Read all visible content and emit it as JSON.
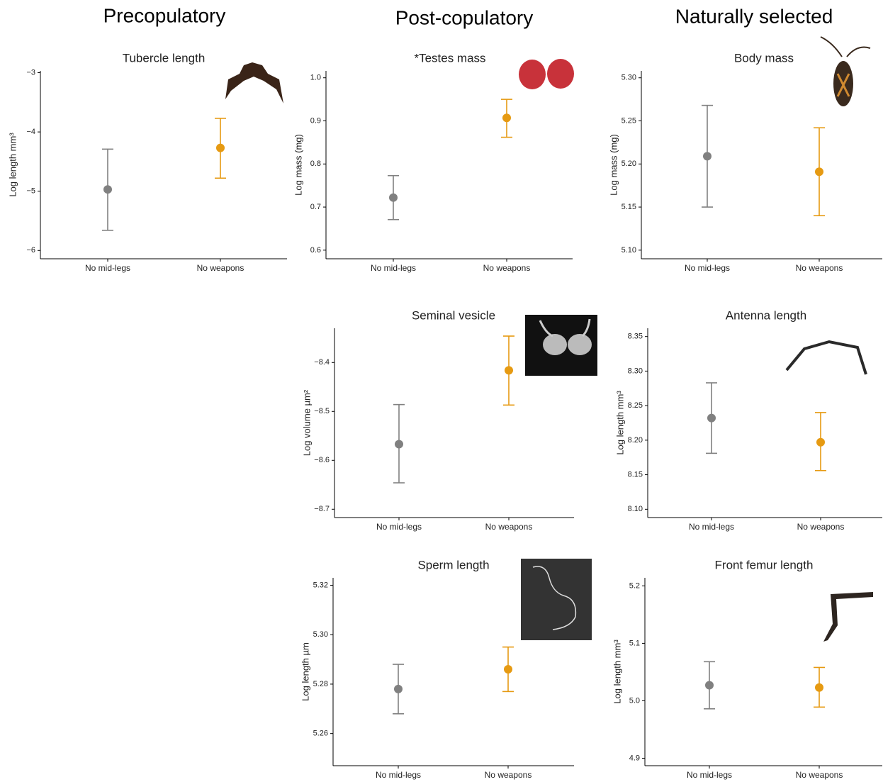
{
  "column_headers": [
    "Precopulatory",
    "Post-copulatory",
    "Naturally selected"
  ],
  "chart_data": [
    {
      "type": "pointrange",
      "title": "Tubercle length",
      "ylabel": "Log length mm³",
      "categories": [
        "No mid-legs",
        "No weapons"
      ],
      "values": [
        -4.97,
        -4.27
      ],
      "lower": [
        -5.66,
        -4.78
      ],
      "upper": [
        -4.29,
        -3.77
      ],
      "colors": [
        "#808080",
        "#e69a12"
      ],
      "ylim": [
        -6.14,
        -2.97
      ],
      "yticks": [
        {
          "value": -3,
          "label": "−3"
        },
        {
          "value": -4,
          "label": "−4"
        },
        {
          "value": -5,
          "label": "−5"
        },
        {
          "value": -6,
          "label": "−6"
        }
      ]
    },
    {
      "type": "pointrange",
      "title": "*Testes mass",
      "ylabel": "Log mass (mg)",
      "categories": [
        "No mid-legs",
        "No weapons"
      ],
      "values": [
        0.722,
        0.907
      ],
      "lower": [
        0.671,
        0.862
      ],
      "upper": [
        0.773,
        0.95
      ],
      "colors": [
        "#808080",
        "#e69a12"
      ],
      "ylim": [
        0.58,
        1.016
      ],
      "yticks": [
        {
          "value": 1,
          "label": "1.0"
        },
        0.9,
        0.8,
        0.7,
        0.6
      ]
    },
    {
      "type": "pointrange",
      "title": "Body mass",
      "ylabel": "Log mass (mg)",
      "categories": [
        "No mid-legs",
        "No weapons"
      ],
      "values": [
        5.209,
        5.191
      ],
      "lower": [
        5.15,
        5.14
      ],
      "upper": [
        5.268,
        5.242
      ],
      "colors": [
        "#808080",
        "#e69a12"
      ],
      "ylim": [
        5.09,
        5.308
      ],
      "yticks": [
        {
          "value": 5.3,
          "label": "5.30"
        },
        5.25,
        {
          "value": 5.2,
          "label": "5.20"
        },
        5.15,
        {
          "value": 5.1,
          "label": "5.10"
        }
      ]
    },
    {
      "type": "pointrange",
      "title": "Seminal vesicle",
      "ylabel": "Log volume µm²",
      "categories": [
        "No mid-legs",
        "No weapons"
      ],
      "values": [
        -8.567,
        -8.416
      ],
      "lower": [
        -8.646,
        -8.487
      ],
      "upper": [
        -8.486,
        -8.346
      ],
      "colors": [
        "#808080",
        "#e69a12"
      ],
      "ylim": [
        -8.717,
        -8.33
      ],
      "yticks": [
        {
          "value": -8.4,
          "label": "−8.4"
        },
        {
          "value": -8.5,
          "label": "−8.5"
        },
        {
          "value": -8.6,
          "label": "−8.6"
        },
        {
          "value": -8.7,
          "label": "−8.7"
        }
      ]
    },
    {
      "type": "pointrange",
      "title": "Antenna length",
      "ylabel": "Log length mm³",
      "categories": [
        "No mid-legs",
        "No weapons"
      ],
      "values": [
        8.232,
        8.197
      ],
      "lower": [
        8.181,
        8.156
      ],
      "upper": [
        8.283,
        8.24
      ],
      "colors": [
        "#808080",
        "#e69a12"
      ],
      "ylim": [
        8.088,
        8.362
      ],
      "yticks": [
        8.35,
        {
          "value": 8.3,
          "label": "8.30"
        },
        8.25,
        {
          "value": 8.2,
          "label": "8.20"
        },
        8.15,
        {
          "value": 8.1,
          "label": "8.10"
        }
      ]
    },
    {
      "type": "pointrange",
      "title": "Sperm length",
      "ylabel": "Log length µm",
      "categories": [
        "No mid-legs",
        "No weapons"
      ],
      "values": [
        5.278,
        5.286
      ],
      "lower": [
        5.268,
        5.277
      ],
      "upper": [
        5.288,
        5.295
      ],
      "colors": [
        "#808080",
        "#e69a12"
      ],
      "ylim": [
        5.247,
        5.323
      ],
      "yticks": [
        5.32,
        {
          "value": 5.3,
          "label": "5.30"
        },
        5.28,
        5.26
      ]
    },
    {
      "type": "pointrange",
      "title": "Front femur length",
      "ylabel": "Log length mm³",
      "categories": [
        "No mid-legs",
        "No weapons"
      ],
      "values": [
        5.027,
        5.023
      ],
      "lower": [
        4.986,
        4.989
      ],
      "upper": [
        5.068,
        5.058
      ],
      "colors": [
        "#808080",
        "#e69a12"
      ],
      "ylim": [
        4.887,
        5.214
      ],
      "yticks": [
        5.2,
        5.1,
        {
          "value": 5,
          "label": "5.0"
        },
        4.9
      ]
    }
  ]
}
